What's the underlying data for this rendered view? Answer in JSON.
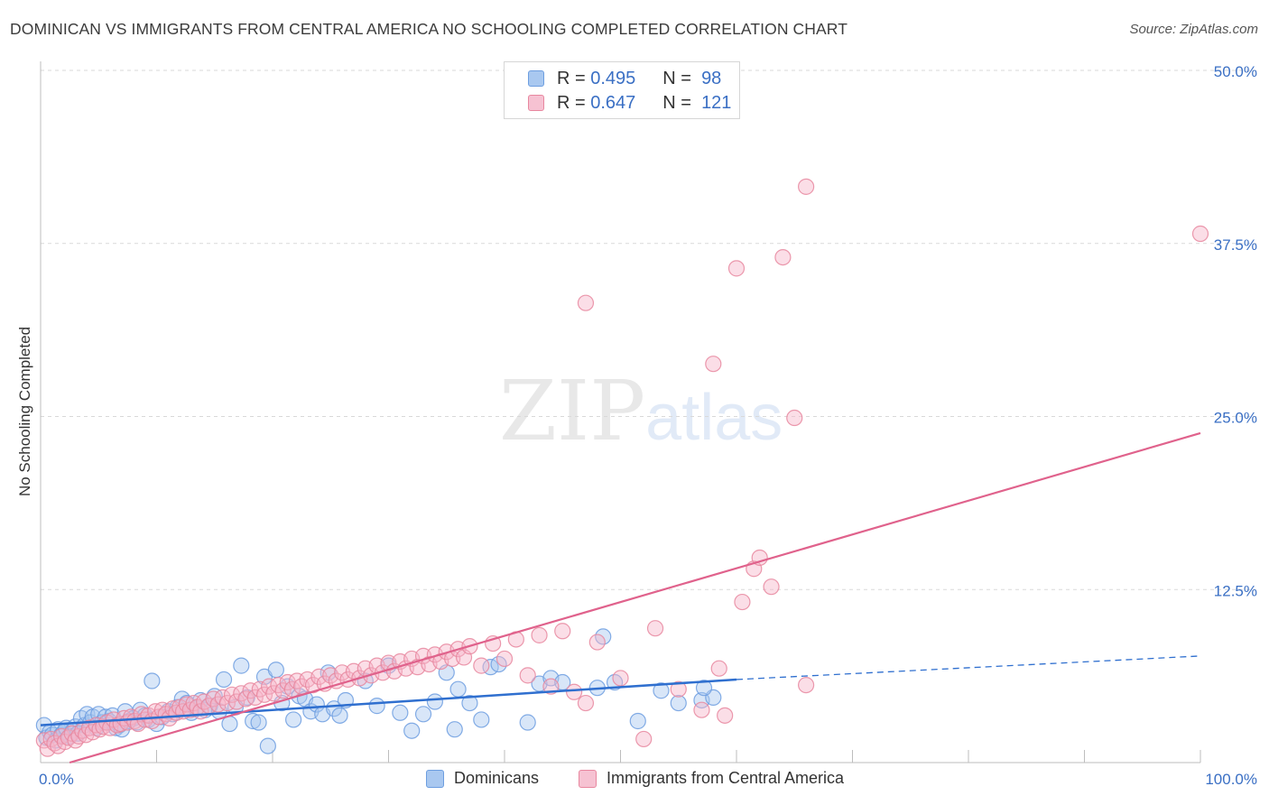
{
  "title": "DOMINICAN VS IMMIGRANTS FROM CENTRAL AMERICA NO SCHOOLING COMPLETED CORRELATION CHART",
  "source": "Source: ZipAtlas.com",
  "watermark": {
    "zip": "ZIP",
    "atlas": "atlas"
  },
  "legend": {
    "r_key": "R =",
    "n_key": "N =",
    "rows": [
      {
        "r": "0.495",
        "n": "98"
      },
      {
        "r": "0.647",
        "n": "121"
      }
    ]
  },
  "chart_data": {
    "type": "scatter",
    "title": "DOMINICAN VS IMMIGRANTS FROM CENTRAL AMERICA NO SCHOOLING COMPLETED CORRELATION CHART",
    "xlabel": "",
    "ylabel": "No Schooling Completed",
    "xlim": [
      0,
      100
    ],
    "ylim": [
      0,
      50
    ],
    "x_tick_labels": [
      "0.0%",
      "100.0%"
    ],
    "y_ticks": [
      12.5,
      25.0,
      37.5,
      50.0
    ],
    "y_tick_labels": [
      "12.5%",
      "25.0%",
      "37.5%",
      "50.0%"
    ],
    "grid": "horizontal dashed",
    "legend_position": "top-center, bottom",
    "colors": {
      "blue_fill": "#a9c8f0",
      "blue_stroke": "#6d9ee0",
      "blue_line": "#2f6fcf",
      "pink_fill": "#f6b6ca",
      "pink_stroke": "#e8879f",
      "pink_line": "#e0628c",
      "axis_text": "#3a6fc4"
    },
    "series": [
      {
        "name": "Dominicans",
        "trend": {
          "x0": 0,
          "y0": 2.7,
          "x1": 60,
          "y1": 6.0,
          "dash_x1": 100,
          "dash_y1": 7.7
        },
        "points": [
          [
            0.3,
            2.7
          ],
          [
            0.5,
            1.8
          ],
          [
            0.8,
            2.2
          ],
          [
            1.0,
            2.0
          ],
          [
            1.3,
            1.6
          ],
          [
            1.5,
            2.4
          ],
          [
            1.8,
            2.0
          ],
          [
            2.0,
            2.2
          ],
          [
            2.2,
            2.5
          ],
          [
            2.5,
            1.9
          ],
          [
            2.8,
            2.3
          ],
          [
            3.0,
            2.6
          ],
          [
            3.2,
            2.1
          ],
          [
            3.5,
            3.2
          ],
          [
            3.8,
            2.7
          ],
          [
            4.0,
            3.5
          ],
          [
            4.3,
            2.9
          ],
          [
            4.5,
            3.3
          ],
          [
            4.8,
            2.5
          ],
          [
            5.0,
            3.5
          ],
          [
            5.3,
            2.9
          ],
          [
            5.6,
            3.3
          ],
          [
            5.9,
            3.0
          ],
          [
            6.2,
            3.4
          ],
          [
            6.5,
            2.5
          ],
          [
            6.8,
            2.7
          ],
          [
            7.0,
            2.4
          ],
          [
            7.3,
            3.7
          ],
          [
            7.6,
            3.0
          ],
          [
            8.0,
            3.2
          ],
          [
            8.3,
            2.9
          ],
          [
            8.6,
            3.8
          ],
          [
            9.0,
            3.4
          ],
          [
            9.3,
            3.1
          ],
          [
            9.6,
            5.9
          ],
          [
            10.0,
            2.8
          ],
          [
            10.5,
            3.3
          ],
          [
            11.0,
            3.7
          ],
          [
            11.4,
            3.5
          ],
          [
            11.8,
            4.0
          ],
          [
            12.2,
            4.6
          ],
          [
            12.6,
            4.3
          ],
          [
            13.0,
            3.6
          ],
          [
            13.4,
            3.9
          ],
          [
            13.8,
            4.5
          ],
          [
            14.2,
            3.8
          ],
          [
            14.6,
            4.1
          ],
          [
            15.0,
            4.8
          ],
          [
            15.4,
            3.7
          ],
          [
            15.8,
            6.0
          ],
          [
            16.3,
            2.8
          ],
          [
            16.8,
            4.0
          ],
          [
            17.3,
            7.0
          ],
          [
            17.8,
            4.7
          ],
          [
            18.3,
            3.0
          ],
          [
            18.8,
            2.9
          ],
          [
            19.3,
            6.2
          ],
          [
            19.6,
            1.2
          ],
          [
            20.3,
            6.7
          ],
          [
            20.8,
            4.3
          ],
          [
            21.3,
            5.5
          ],
          [
            21.8,
            3.1
          ],
          [
            22.3,
            4.8
          ],
          [
            22.8,
            4.6
          ],
          [
            23.3,
            3.7
          ],
          [
            23.8,
            4.2
          ],
          [
            24.3,
            3.5
          ],
          [
            24.8,
            6.5
          ],
          [
            25.3,
            3.9
          ],
          [
            25.8,
            3.4
          ],
          [
            26.3,
            4.5
          ],
          [
            28.0,
            5.9
          ],
          [
            29.0,
            4.1
          ],
          [
            30.0,
            7.0
          ],
          [
            31.0,
            3.6
          ],
          [
            32.0,
            2.3
          ],
          [
            33.0,
            3.5
          ],
          [
            34.0,
            4.4
          ],
          [
            35.0,
            6.5
          ],
          [
            35.7,
            2.4
          ],
          [
            36.0,
            5.3
          ],
          [
            37.0,
            4.3
          ],
          [
            38.0,
            3.1
          ],
          [
            38.8,
            6.9
          ],
          [
            39.5,
            7.1
          ],
          [
            42.0,
            2.9
          ],
          [
            43.0,
            5.7
          ],
          [
            44.0,
            6.1
          ],
          [
            45.0,
            5.8
          ],
          [
            48.0,
            5.4
          ],
          [
            48.5,
            9.1
          ],
          [
            49.5,
            5.8
          ],
          [
            51.5,
            3.0
          ],
          [
            53.5,
            5.2
          ],
          [
            55.0,
            4.3
          ],
          [
            57.0,
            4.5
          ],
          [
            58.0,
            4.7
          ],
          [
            57.2,
            5.4
          ]
        ]
      },
      {
        "name": "Immigrants from Central America",
        "trend": {
          "x0": 2.5,
          "y0": 0.0,
          "x1": 100,
          "y1": 23.8
        },
        "points": [
          [
            0.3,
            1.6
          ],
          [
            0.6,
            1.0
          ],
          [
            0.9,
            1.7
          ],
          [
            1.2,
            1.4
          ],
          [
            1.5,
            1.2
          ],
          [
            1.8,
            1.9
          ],
          [
            2.1,
            1.5
          ],
          [
            2.4,
            1.8
          ],
          [
            2.7,
            2.1
          ],
          [
            3.0,
            1.6
          ],
          [
            3.3,
            1.9
          ],
          [
            3.6,
            2.3
          ],
          [
            3.9,
            2.0
          ],
          [
            4.2,
            2.5
          ],
          [
            4.5,
            2.2
          ],
          [
            4.8,
            2.7
          ],
          [
            5.1,
            2.4
          ],
          [
            5.4,
            2.6
          ],
          [
            5.7,
            2.9
          ],
          [
            6.0,
            2.5
          ],
          [
            6.3,
            3.1
          ],
          [
            6.6,
            2.7
          ],
          [
            6.9,
            2.8
          ],
          [
            7.2,
            3.2
          ],
          [
            7.5,
            2.9
          ],
          [
            7.8,
            3.3
          ],
          [
            8.1,
            3.0
          ],
          [
            8.4,
            2.8
          ],
          [
            8.7,
            3.5
          ],
          [
            9.0,
            3.1
          ],
          [
            9.3,
            3.4
          ],
          [
            9.6,
            3.0
          ],
          [
            9.9,
            3.7
          ],
          [
            10.2,
            3.3
          ],
          [
            10.5,
            3.8
          ],
          [
            10.8,
            3.5
          ],
          [
            11.1,
            3.2
          ],
          [
            11.4,
            3.9
          ],
          [
            11.7,
            3.6
          ],
          [
            12.0,
            4.0
          ],
          [
            12.3,
            3.7
          ],
          [
            12.6,
            4.2
          ],
          [
            12.9,
            3.8
          ],
          [
            13.2,
            4.3
          ],
          [
            13.5,
            4.0
          ],
          [
            13.8,
            3.7
          ],
          [
            14.1,
            4.4
          ],
          [
            14.5,
            4.1
          ],
          [
            14.9,
            4.6
          ],
          [
            15.3,
            4.2
          ],
          [
            15.7,
            4.7
          ],
          [
            16.1,
            4.3
          ],
          [
            16.5,
            4.9
          ],
          [
            16.9,
            4.4
          ],
          [
            17.3,
            5.0
          ],
          [
            17.7,
            4.6
          ],
          [
            18.1,
            5.2
          ],
          [
            18.5,
            4.7
          ],
          [
            18.9,
            5.3
          ],
          [
            19.3,
            4.9
          ],
          [
            19.7,
            5.5
          ],
          [
            20.1,
            5.0
          ],
          [
            20.5,
            5.6
          ],
          [
            20.9,
            5.2
          ],
          [
            21.3,
            5.8
          ],
          [
            21.7,
            5.3
          ],
          [
            22.1,
            5.9
          ],
          [
            22.5,
            5.5
          ],
          [
            23.0,
            6.0
          ],
          [
            23.5,
            5.6
          ],
          [
            24.0,
            6.2
          ],
          [
            24.5,
            5.7
          ],
          [
            25.0,
            6.3
          ],
          [
            25.5,
            5.9
          ],
          [
            26.0,
            6.5
          ],
          [
            26.5,
            6.0
          ],
          [
            27.0,
            6.6
          ],
          [
            27.5,
            6.1
          ],
          [
            28.0,
            6.8
          ],
          [
            28.5,
            6.3
          ],
          [
            29.0,
            7.0
          ],
          [
            29.5,
            6.5
          ],
          [
            30.0,
            7.2
          ],
          [
            30.5,
            6.6
          ],
          [
            31.0,
            7.3
          ],
          [
            31.5,
            6.8
          ],
          [
            32.0,
            7.5
          ],
          [
            32.5,
            6.9
          ],
          [
            33.0,
            7.7
          ],
          [
            33.5,
            7.1
          ],
          [
            34.0,
            7.8
          ],
          [
            34.5,
            7.3
          ],
          [
            35.0,
            8.0
          ],
          [
            35.5,
            7.5
          ],
          [
            36.0,
            8.2
          ],
          [
            36.5,
            7.6
          ],
          [
            37.0,
            8.4
          ],
          [
            38.0,
            7.0
          ],
          [
            39.0,
            8.6
          ],
          [
            40.0,
            7.5
          ],
          [
            41.0,
            8.9
          ],
          [
            42.0,
            6.3
          ],
          [
            43.0,
            9.2
          ],
          [
            44.0,
            5.5
          ],
          [
            45.0,
            9.5
          ],
          [
            46.0,
            5.1
          ],
          [
            47.0,
            4.3
          ],
          [
            48.0,
            8.7
          ],
          [
            50.0,
            6.1
          ],
          [
            52.0,
            1.7
          ],
          [
            53.0,
            9.7
          ],
          [
            55.0,
            5.3
          ],
          [
            57.0,
            3.8
          ],
          [
            58.5,
            6.8
          ],
          [
            59.0,
            3.4
          ],
          [
            60.5,
            11.6
          ],
          [
            61.5,
            14.0
          ],
          [
            62.0,
            14.8
          ],
          [
            63.0,
            12.7
          ],
          [
            66.0,
            5.6
          ],
          [
            47.0,
            33.2
          ],
          [
            58.0,
            28.8
          ],
          [
            60.0,
            35.7
          ],
          [
            64.0,
            36.5
          ],
          [
            66.0,
            41.6
          ],
          [
            65.0,
            24.9
          ],
          [
            100.0,
            38.2
          ]
        ]
      }
    ]
  },
  "bottom_legend": [
    {
      "label": "Dominicans"
    },
    {
      "label": "Immigrants from Central America"
    }
  ]
}
